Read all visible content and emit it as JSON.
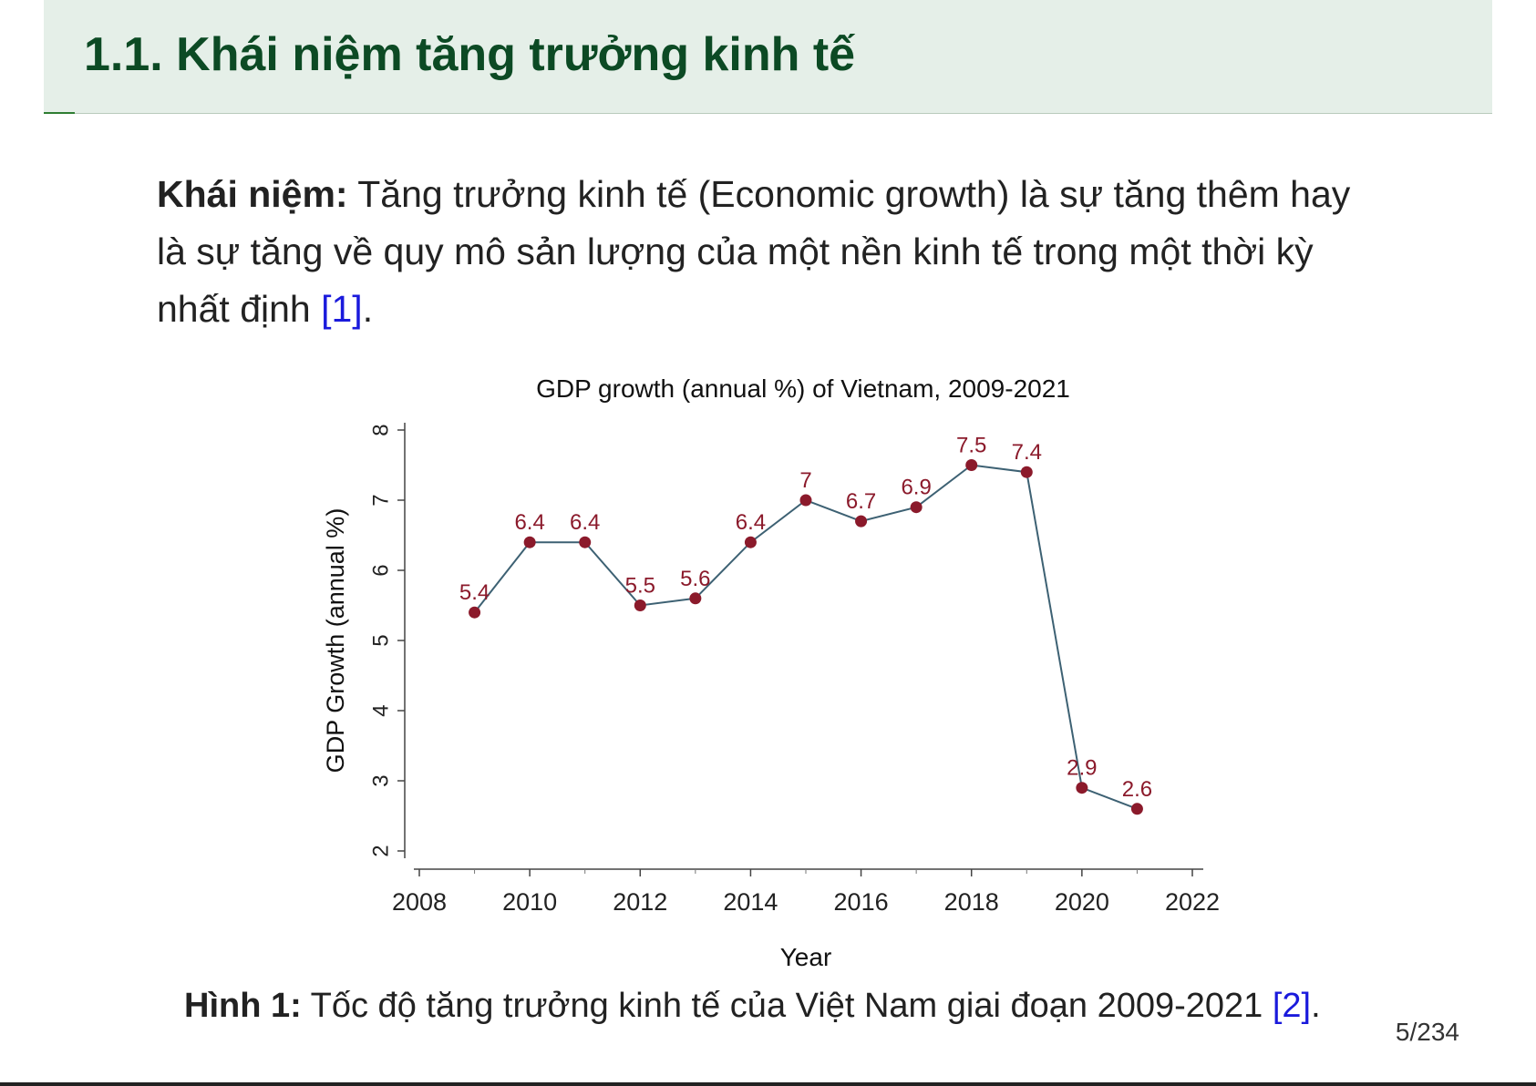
{
  "slide": {
    "title": "1.1. Khái niệm tăng trưởng kinh tế",
    "paragraph": {
      "label": "Khái niệm:",
      "text": " Tăng trưởng kinh tế (Economic growth) là sự tăng thêm hay là sự tăng về quy mô sản lượng của một nền kinh tế trong một thời kỳ nhất định ",
      "citation": "[1]",
      "end": "."
    },
    "caption": {
      "label": "Hình 1:",
      "text": " Tốc độ tăng trưởng kinh tế của Việt Nam giai đoạn 2009-2021 ",
      "citation": "[2]",
      "end": "."
    },
    "page_number": "5/234"
  },
  "chart_data": {
    "type": "line",
    "title": "GDP growth (annual %) of Vietnam, 2009-2021",
    "xlabel": "Year",
    "ylabel": "GDP Growth (annual %)",
    "x": [
      2009,
      2010,
      2011,
      2012,
      2013,
      2014,
      2015,
      2016,
      2017,
      2018,
      2019,
      2020,
      2021
    ],
    "y": [
      5.4,
      6.4,
      6.4,
      5.5,
      5.6,
      6.4,
      7,
      6.7,
      6.9,
      7.5,
      7.4,
      2.9,
      2.6
    ],
    "labels": [
      "5.4",
      "6.4",
      "6.4",
      "5.5",
      "5.6",
      "6.4",
      "7",
      "6.7",
      "6.9",
      "7.5",
      "7.4",
      "2.9",
      "2.6"
    ],
    "xticks": [
      2008,
      2010,
      2012,
      2014,
      2016,
      2018,
      2020,
      2022
    ],
    "yticks": [
      2,
      3,
      4,
      5,
      6,
      7,
      8
    ],
    "xlim": [
      2008,
      2022
    ],
    "ylim": [
      2,
      8
    ],
    "grid": false,
    "line_color": "#3d6173",
    "marker_color": "#8b1a2b",
    "label_color": "#8b1a2b"
  }
}
